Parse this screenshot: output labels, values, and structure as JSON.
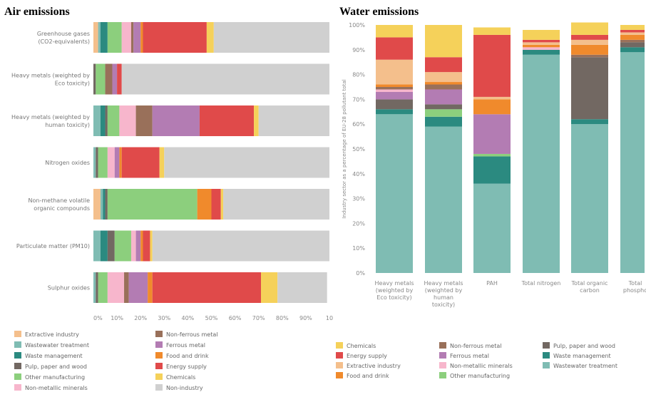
{
  "air": {
    "title": "Air emissions",
    "chart_data": {
      "type": "bar",
      "orientation": "horizontal",
      "stacked": true,
      "title": "Air emissions",
      "xlim": [
        0,
        100
      ],
      "tick_labels": [
        "0%",
        "10%",
        "20%",
        "30%",
        "40%",
        "50%",
        "60%",
        "70%",
        "80%",
        "90%",
        "10"
      ],
      "categories": [
        "Greenhouse gases (CO2-equivalents)",
        "Heavy metals (weighted by Eco toxicity)",
        "Heavy metals (weighted by human toxicity)",
        "Nitrogen oxides",
        "Non-methane volatile organic compounds",
        "Particulate matter (PM10)",
        "Sulphur oxides"
      ],
      "series": [
        {
          "name": "Extractive industry",
          "color": "#f4bf8c",
          "values": [
            2,
            0,
            0,
            0,
            3,
            0,
            0
          ]
        },
        {
          "name": "Wastewater treatment",
          "color": "#7fbcb3",
          "values": [
            1,
            0,
            3,
            1,
            1,
            3,
            1
          ]
        },
        {
          "name": "Waste management",
          "color": "#2b8a80",
          "values": [
            3,
            0,
            2,
            0,
            1,
            3,
            0
          ]
        },
        {
          "name": "Pulp, paper and wood",
          "color": "#726862",
          "values": [
            0,
            1,
            1,
            1,
            1,
            3,
            1
          ]
        },
        {
          "name": "Other manufacturing",
          "color": "#8ccf7d",
          "values": [
            6,
            4,
            5,
            4,
            38,
            7,
            4
          ]
        },
        {
          "name": "Non-metallic minerals",
          "color": "#f7b6cc",
          "values": [
            4,
            0,
            7,
            3,
            0,
            2,
            7
          ]
        },
        {
          "name": "Non-ferrous metal",
          "color": "#99705a",
          "values": [
            1,
            3,
            7,
            0,
            0,
            0,
            2
          ]
        },
        {
          "name": "Ferrous metal",
          "color": "#b37cb3",
          "values": [
            3,
            2,
            20,
            2,
            0,
            2,
            8
          ]
        },
        {
          "name": "Food and drink",
          "color": "#f08a2c",
          "values": [
            1,
            0,
            0,
            1,
            6,
            1,
            2
          ]
        },
        {
          "name": "Energy supply",
          "color": "#e04a4a",
          "values": [
            27,
            2,
            23,
            16,
            4,
            3,
            46
          ]
        },
        {
          "name": "Chemicals",
          "color": "#f5d15a",
          "values": [
            3,
            0,
            2,
            2,
            1,
            1,
            7
          ]
        },
        {
          "name": "Non-industry",
          "color": "#d0d0d0",
          "values": [
            49,
            88,
            30,
            70,
            45,
            75,
            21
          ]
        }
      ]
    },
    "legend": [
      {
        "label": "Extractive industry",
        "color": "#f4bf8c"
      },
      {
        "label": "Wastewater treatment",
        "color": "#7fbcb3"
      },
      {
        "label": "Waste management",
        "color": "#2b8a80"
      },
      {
        "label": "Pulp, paper and wood",
        "color": "#726862"
      },
      {
        "label": "Other manufacturing",
        "color": "#8ccf7d"
      },
      {
        "label": "Non-metallic minerals",
        "color": "#f7b6cc"
      },
      {
        "label": "Non-ferrous metal",
        "color": "#99705a"
      },
      {
        "label": "Ferrous metal",
        "color": "#b37cb3"
      },
      {
        "label": "Food and drink",
        "color": "#f08a2c"
      },
      {
        "label": "Energy supply",
        "color": "#e04a4a"
      },
      {
        "label": "Chemicals",
        "color": "#f5d15a"
      },
      {
        "label": "Non-industry",
        "color": "#d0d0d0"
      }
    ]
  },
  "water": {
    "title": "Water emissions",
    "chart_data": {
      "type": "bar",
      "orientation": "vertical",
      "stacked": true,
      "title": "Water emissions",
      "ylabel": "Industry sector as a percentage of EU-28 pollutant total",
      "ylim": [
        0,
        100
      ],
      "tick_labels": [
        "0%",
        "10%",
        "20%",
        "30%",
        "40%",
        "50%",
        "60%",
        "70%",
        "80%",
        "90%",
        "100%"
      ],
      "categories": [
        "Heavy metals (weighted by Eco toxicity)",
        "Heavy metals (weighted by human toxicity)",
        "PAH",
        "Total nitrogen",
        "Total organic carbon",
        "Total phospho"
      ],
      "series": [
        {
          "name": "Wastewater treatment",
          "color": "#7fbcb3",
          "values": [
            64,
            59,
            36,
            88,
            60,
            89
          ]
        },
        {
          "name": "Waste management",
          "color": "#2b8a80",
          "values": [
            2,
            4,
            11,
            2,
            2,
            2
          ]
        },
        {
          "name": "Other manufacturing",
          "color": "#8ccf7d",
          "values": [
            0,
            3,
            1,
            0,
            0,
            0
          ]
        },
        {
          "name": "Pulp, paper and wood",
          "color": "#726862",
          "values": [
            4,
            2,
            0,
            0,
            25,
            2
          ]
        },
        {
          "name": "Ferrous metal",
          "color": "#b37cb3",
          "values": [
            3,
            6,
            16,
            0,
            0,
            0
          ]
        },
        {
          "name": "Non-metallic minerals",
          "color": "#f7b6cc",
          "values": [
            1,
            0,
            0,
            1,
            0,
            0
          ]
        },
        {
          "name": "Non-ferrous metal",
          "color": "#99705a",
          "values": [
            1,
            2,
            0,
            0,
            1,
            1
          ]
        },
        {
          "name": "Food and drink",
          "color": "#f08a2c",
          "values": [
            1,
            1,
            6,
            1,
            4,
            2
          ]
        },
        {
          "name": "Extractive industry",
          "color": "#f4bf8c",
          "values": [
            10,
            4,
            1,
            1,
            2,
            1
          ]
        },
        {
          "name": "Energy supply",
          "color": "#e04a4a",
          "values": [
            9,
            6,
            25,
            1,
            2,
            1
          ]
        },
        {
          "name": "Chemicals",
          "color": "#f5d15a",
          "values": [
            5,
            13,
            3,
            4,
            5,
            2
          ]
        }
      ]
    },
    "category_labels": [
      [
        "Heavy metals",
        "(weighted by",
        "Eco toxicity)"
      ],
      [
        "Heavy metals",
        "(weighted by",
        "human",
        "toxicity)"
      ],
      [
        "PAH"
      ],
      [
        "Total nitrogen"
      ],
      [
        "Total organic",
        "carbon"
      ],
      [
        "Total",
        "phospho"
      ]
    ],
    "legend": [
      {
        "label": "Chemicals",
        "color": "#f5d15a"
      },
      {
        "label": "Energy supply",
        "color": "#e04a4a"
      },
      {
        "label": "Extractive industry",
        "color": "#f4bf8c"
      },
      {
        "label": "Food and drink",
        "color": "#f08a2c"
      },
      {
        "label": "Non-ferrous metal",
        "color": "#99705a"
      },
      {
        "label": "Ferrous metal",
        "color": "#b37cb3"
      },
      {
        "label": "Non-metallic minerals",
        "color": "#f7b6cc"
      },
      {
        "label": "Other manufacturing",
        "color": "#8ccf7d"
      },
      {
        "label": "Pulp, paper and wood",
        "color": "#726862"
      },
      {
        "label": "Waste management",
        "color": "#2b8a80"
      },
      {
        "label": "Wastewater treatment",
        "color": "#7fbcb3"
      }
    ]
  },
  "air_category_labels": [
    [
      "Greenhouse gases",
      "(CO2-equivalents)"
    ],
    [
      "Heavy metals (weighted by",
      "Eco toxicity)"
    ],
    [
      "Heavy metals (weighted by",
      "human toxicity)"
    ],
    [
      "Nitrogen oxides"
    ],
    [
      "Non-methane volatile",
      "organic compounds"
    ],
    [
      "Particulate matter (PM10)"
    ],
    [
      "Sulphur oxides"
    ]
  ]
}
